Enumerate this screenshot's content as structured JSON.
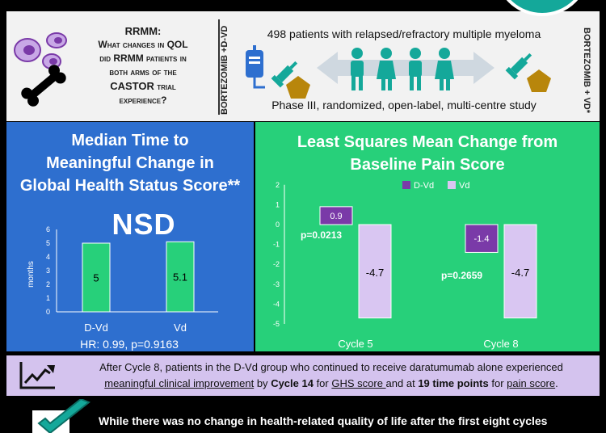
{
  "header": {
    "question_title": "RRMM:",
    "question_lines": [
      "What changes in QOL",
      "did RRMM patients in",
      "both arms of the"
    ],
    "question_castor": "CASTOR",
    "question_trial": " trial",
    "question_end": "experience?",
    "left_arm_label": "BORTEZOMIB +D-VD",
    "right_arm_label": "BORTEZOMIB + VD*",
    "patients_text": "498 patients with relapsed/refractory multiple myeloma",
    "study_text": "Phase III, randomized, open-label, multi-centre study"
  },
  "left_panel": {
    "title_line1": "Median Time to",
    "title_line2": "Meaningful Change in",
    "title_line3": "Global Health Status Score**",
    "nsd": "NSD",
    "ylabel": "months",
    "yticks": [
      "6",
      "5",
      "4",
      "3",
      "2",
      "1",
      "0"
    ],
    "hr_text": "HR: 0.99, p=0.9163"
  },
  "right_panel": {
    "title_line1": "Least Squares Mean Change from",
    "title_line2": "Baseline Pain Score",
    "yticks": [
      "2",
      "1",
      "0",
      "-1",
      "-2",
      "-3",
      "-4",
      "-5"
    ],
    "p1": "p=0.0213",
    "p2": "p=0.2659"
  },
  "chart_data": [
    {
      "type": "bar",
      "categories": [
        "D-Vd",
        "Vd"
      ],
      "values": [
        5,
        5.1
      ],
      "ylabel": "months",
      "ylim": [
        0,
        6
      ],
      "colors": [
        "#27d07a",
        "#27d07a"
      ]
    },
    {
      "type": "bar",
      "categories": [
        "Cycle 5",
        "Cycle 8"
      ],
      "series": [
        {
          "name": "D-Vd",
          "values": [
            0.9,
            -1.4
          ],
          "color": "#7a3aa8"
        },
        {
          "name": "Vd",
          "values": [
            -4.7,
            -4.7
          ],
          "color": "#d9c6f2"
        }
      ],
      "ylim": [
        -5,
        2
      ],
      "legend": "top"
    }
  ],
  "summary": {
    "part1": "After Cycle 8, patients in the D-Vd group who continued to receive daratumumab alone experienced",
    "part2": "meaningful clinical improvement",
    "part3": " by ",
    "part4": "Cycle 14",
    "part5": " for ",
    "part6": "GHS score ",
    "part7": "and at ",
    "part8": "19 time points",
    "part9": " for ",
    "part10": "pain score",
    "part11": "."
  },
  "bottom": {
    "text": "While there was no change in health-related quality of life after the first eight cycles"
  },
  "colors": {
    "blue_panel": "#2e6fcf",
    "green_panel": "#27d07a",
    "lavender": "#d4c3ee",
    "teal": "#14a89a",
    "purple": "#7a3aa8"
  }
}
